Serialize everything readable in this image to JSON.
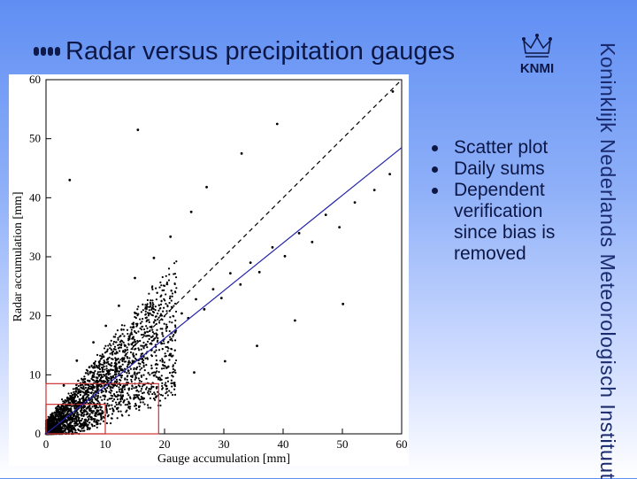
{
  "slide": {
    "title": "Radar versus precipitation gauges",
    "logo_text": "KNMI",
    "side_text": "Koninklijk Nederlands Meteorologisch Instituut",
    "bullets": [
      "Scatter plot",
      "Daily sums",
      "Dependent verification since bias is removed"
    ]
  },
  "colors": {
    "title": "#0d1745",
    "regression_line": "#2222aa",
    "highlight_box": "#cc3333",
    "points": "#000000"
  },
  "chart_data": {
    "type": "scatter",
    "title": "",
    "xlabel": "Gauge accumulation [mm]",
    "ylabel": "Radar accumulation [mm]",
    "xlim": [
      0,
      60
    ],
    "ylim": [
      0,
      60
    ],
    "x_ticks": [
      0,
      10,
      20,
      30,
      40,
      50,
      60
    ],
    "y_ticks": [
      0,
      10,
      20,
      30,
      40,
      50,
      60
    ],
    "grid": false,
    "lines": [
      {
        "style": "dashed",
        "color": "#000000",
        "points": [
          [
            0,
            0
          ],
          [
            60,
            60
          ]
        ]
      },
      {
        "style": "solid",
        "color": "#2222aa",
        "points": [
          [
            0,
            0
          ],
          [
            60,
            48.5
          ]
        ]
      }
    ],
    "boxes": [
      {
        "x": [
          0,
          10
        ],
        "y": [
          0,
          5
        ],
        "color": "#cc3333"
      },
      {
        "x": [
          0,
          19
        ],
        "y": [
          0,
          8.5
        ],
        "color": "#cc3333"
      }
    ],
    "series": [
      {
        "points": [
          [
            0.5,
            0.3
          ],
          [
            1.2,
            0.8
          ],
          [
            2.1,
            1.4
          ],
          [
            3.0,
            2.6
          ],
          [
            4.2,
            3.1
          ],
          [
            5.5,
            4.8
          ],
          [
            6.1,
            5.2
          ],
          [
            7.3,
            5.9
          ],
          [
            8.4,
            7.1
          ],
          [
            9.2,
            8.4
          ],
          [
            10.5,
            9.0
          ],
          [
            11.8,
            10.1
          ],
          [
            12.6,
            11.4
          ],
          [
            13.9,
            10.7
          ],
          [
            14.8,
            13.2
          ],
          [
            15.6,
            12.5
          ],
          [
            16.9,
            15.1
          ],
          [
            17.8,
            14.2
          ],
          [
            18.7,
            16.8
          ],
          [
            19.5,
            15.3
          ],
          [
            20.4,
            18.1
          ],
          [
            21.8,
            17.2
          ],
          [
            22.9,
            20.4
          ],
          [
            24.0,
            19.6
          ],
          [
            25.3,
            22.8
          ],
          [
            26.7,
            21.1
          ],
          [
            28.2,
            24.5
          ],
          [
            29.6,
            23.0
          ],
          [
            31.1,
            27.2
          ],
          [
            32.8,
            25.3
          ],
          [
            34.5,
            29.0
          ],
          [
            36.0,
            27.4
          ],
          [
            38.2,
            31.6
          ],
          [
            40.3,
            30.1
          ],
          [
            42.7,
            34.0
          ],
          [
            44.9,
            32.5
          ],
          [
            47.2,
            37.1
          ],
          [
            49.5,
            35.0
          ],
          [
            52.1,
            39.2
          ],
          [
            55.4,
            41.3
          ],
          [
            58.0,
            44.0
          ],
          [
            3.0,
            8.2
          ],
          [
            5.2,
            12.4
          ],
          [
            8.0,
            15.5
          ],
          [
            10.1,
            18.3
          ],
          [
            12.3,
            21.7
          ],
          [
            15.0,
            26.4
          ],
          [
            18.2,
            29.8
          ],
          [
            21.0,
            33.4
          ],
          [
            24.5,
            37.6
          ],
          [
            27.1,
            41.8
          ],
          [
            33.0,
            47.5
          ],
          [
            39.0,
            52.5
          ],
          [
            8.5,
            2.1
          ],
          [
            12.0,
            4.3
          ],
          [
            16.5,
            6.0
          ],
          [
            20.3,
            8.1
          ],
          [
            25.0,
            10.4
          ],
          [
            30.2,
            12.3
          ],
          [
            35.6,
            14.9
          ],
          [
            42.0,
            19.2
          ],
          [
            50.1,
            22.0
          ],
          [
            15.5,
            51.5
          ],
          [
            4.0,
            43.0
          ],
          [
            58.5,
            58.0
          ]
        ]
      }
    ]
  }
}
